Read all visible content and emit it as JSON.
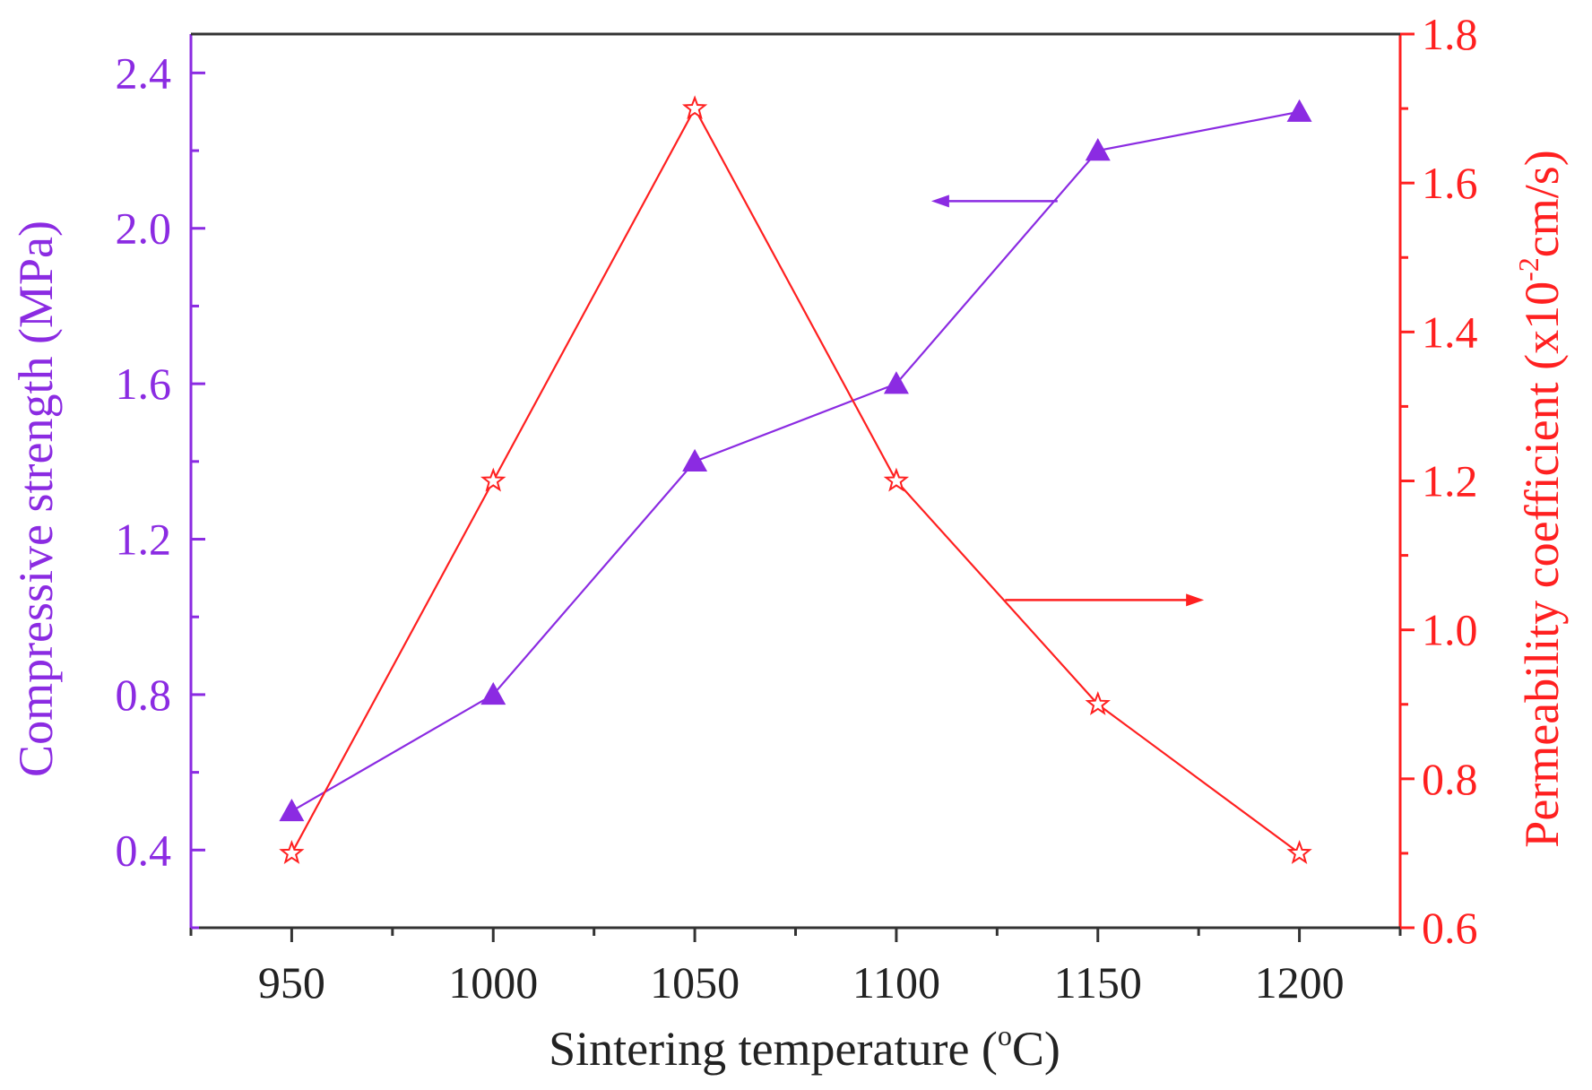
{
  "chart_data": {
    "type": "line",
    "x": [
      950,
      1000,
      1050,
      1100,
      1150,
      1200
    ],
    "xlabel": "Sintering temperature (",
    "xlabel_sup": "o",
    "xlabel_tail": "C)",
    "xlim": [
      925,
      1225
    ],
    "xticks": [
      "950",
      "1000",
      "1050",
      "1100",
      "1150",
      "1200"
    ],
    "ylabel_left": "Compressive strength (MPa)",
    "ylim_left": [
      0.2,
      2.5
    ],
    "yticks_left": [
      "0.4",
      "0.8",
      "1.2",
      "1.6",
      "2.0",
      "2.4"
    ],
    "ylabel_right_pre": "Permeability coefficient (x10",
    "ylabel_right_sup": "-2",
    "ylabel_right_post": "cm/s)",
    "ylim_right": [
      0.6,
      1.8
    ],
    "yticks_right": [
      "0.6",
      "0.8",
      "1.0",
      "1.2",
      "1.4",
      "1.6",
      "1.8"
    ],
    "grid": false,
    "series": [
      {
        "axis": "left",
        "marker": "triangle",
        "color": "#8B2BE2",
        "values": [
          0.5,
          0.8,
          1.4,
          1.6,
          2.2,
          2.3
        ]
      },
      {
        "axis": "right",
        "marker": "star",
        "color": "#FF2020",
        "values": [
          0.7,
          1.2,
          1.7,
          1.2,
          0.9,
          0.7
        ]
      }
    ],
    "annotations": [
      {
        "type": "arrow",
        "direction": "left",
        "color": "#8B2BE2",
        "x_from": 1140,
        "x_to": 1110,
        "axis": "left",
        "y": 2.07
      },
      {
        "type": "arrow",
        "direction": "right",
        "color": "#FF2020",
        "x_from": 1127,
        "x_to": 1175,
        "axis": "right",
        "y": 1.04
      }
    ]
  }
}
